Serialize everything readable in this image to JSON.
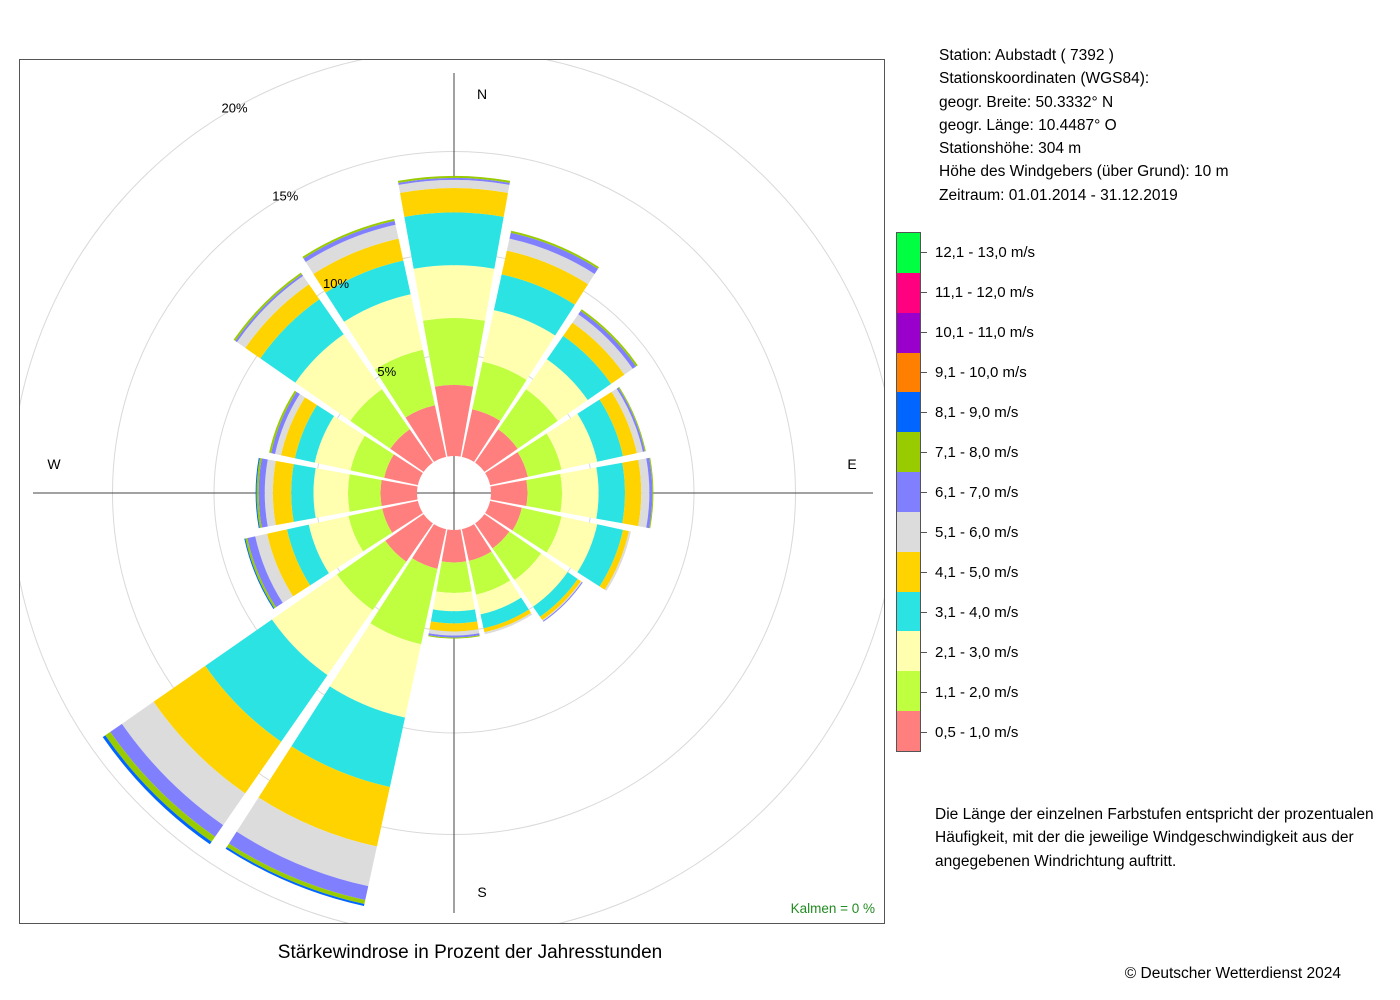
{
  "chart_data": {
    "type": "wind-rose",
    "title": "Stärkewindrose in Prozent der Jahresstunden",
    "directions": [
      "N",
      "NNE",
      "NE",
      "ENE",
      "E",
      "ESE",
      "SE",
      "SSE",
      "S",
      "SSW",
      "SW",
      "WSW",
      "W",
      "WNW",
      "NW",
      "NNW"
    ],
    "direction_labels": {
      "N": "N",
      "E": "E",
      "S": "S",
      "W": "W"
    },
    "radial_axis": {
      "max": 20,
      "ticks": [
        5,
        10,
        15,
        20
      ],
      "tick_labels": [
        "5%",
        "10%",
        "15%",
        "20%"
      ],
      "unit": "%",
      "label_bearing_deg": 330
    },
    "calm": {
      "label": "Kalmen",
      "value_text": "0 %",
      "color": "#228B22"
    },
    "speed_classes": [
      {
        "label": "0,5 - 1,0 m/s",
        "color": "#FF7F7F"
      },
      {
        "label": "1,1 - 2,0 m/s",
        "color": "#BFFF3F"
      },
      {
        "label": "2,1 - 3,0 m/s",
        "color": "#FFFFAF"
      },
      {
        "label": "3,1 - 4,0 m/s",
        "color": "#2BE3E3"
      },
      {
        "label": "4,1 - 5,0 m/s",
        "color": "#FFD300"
      },
      {
        "label": "5,1 - 6,0 m/s",
        "color": "#DCDCDC"
      },
      {
        "label": "6,1 - 7,0 m/s",
        "color": "#8080FF"
      },
      {
        "label": "7,1 - 8,0 m/s",
        "color": "#99CC00"
      },
      {
        "label": "8,1 - 9,0 m/s",
        "color": "#0066FF"
      },
      {
        "label": "9,1 - 10,0 m/s",
        "color": "#FF8000"
      },
      {
        "label": "10,1 - 11,0 m/s",
        "color": "#9900CC"
      },
      {
        "label": "11,1 - 12,0 m/s",
        "color": "#FF0080"
      },
      {
        "label": "12,1 - 13,0 m/s",
        "color": "#00FF40"
      }
    ],
    "cumulative_percent": [
      [
        3.5,
        6.8,
        9.4,
        12.0,
        13.2,
        13.6,
        13.7,
        13.8,
        13.8
      ],
      [
        2.4,
        4.8,
        7.4,
        9.2,
        10.4,
        11.0,
        11.3,
        11.4,
        11.4
      ],
      [
        2.0,
        4.4,
        6.2,
        7.6,
        8.4,
        8.9,
        9.1,
        9.2,
        9.2
      ],
      [
        1.9,
        3.6,
        5.4,
        6.7,
        7.4,
        7.7,
        7.8,
        7.85,
        7.85
      ],
      [
        1.8,
        3.5,
        5.3,
        6.6,
        7.4,
        7.8,
        7.95,
        8.0,
        8.0
      ],
      [
        1.6,
        3.6,
        5.4,
        6.7,
        7.0,
        7.1,
        7.1,
        7.1,
        7.1
      ],
      [
        1.5,
        3.4,
        5.0,
        5.6,
        5.8,
        5.85,
        5.9,
        5.9,
        5.9
      ],
      [
        1.6,
        3.3,
        4.3,
        5.0,
        5.2,
        5.3,
        5.3,
        5.3,
        5.3
      ],
      [
        1.6,
        3.1,
        4.0,
        4.6,
        5.0,
        5.2,
        5.3,
        5.35,
        5.35
      ],
      [
        2.0,
        5.8,
        9.5,
        13.0,
        16.0,
        18.0,
        18.7,
        18.9,
        19.0
      ],
      [
        2.3,
        5.2,
        9.1,
        13.1,
        16.2,
        18.1,
        18.8,
        19.1,
        19.25
      ],
      [
        1.8,
        3.5,
        5.5,
        6.6,
        7.6,
        8.2,
        8.6,
        8.7,
        8.75
      ],
      [
        1.8,
        3.4,
        5.1,
        6.2,
        7.1,
        7.5,
        7.8,
        7.9,
        7.95
      ],
      [
        1.7,
        3.4,
        5.2,
        6.2,
        6.9,
        7.2,
        7.4,
        7.5,
        7.5
      ],
      [
        2.0,
        4.4,
        7.7,
        9.8,
        10.7,
        11.2,
        11.3,
        11.4,
        11.4
      ],
      [
        2.6,
        5.4,
        8.2,
        9.9,
        11.0,
        11.7,
        11.9,
        12.0,
        12.0
      ]
    ]
  },
  "station": {
    "line1": "Station:  Aubstadt  ( 7392 )",
    "line2": "Stationskoordinaten (WGS84):",
    "line3": "geogr. Breite: 50.3332° N",
    "line4": "geogr. Länge: 10.4487° O",
    "line5": "Stationshöhe: 304 m",
    "line6": "Höhe des Windgebers (über Grund): 10 m",
    "line7": "Zeitraum: 01.01.2014 - 31.12.2019"
  },
  "explanation": "Die Länge der einzelnen Farbstufen entspricht der prozentualen Häufigkeit, mit der die jeweilige Windgeschwindigkeit aus der angegebenen Windrichtung auftritt.",
  "copyright": "© Deutscher Wetterdienst  2024"
}
